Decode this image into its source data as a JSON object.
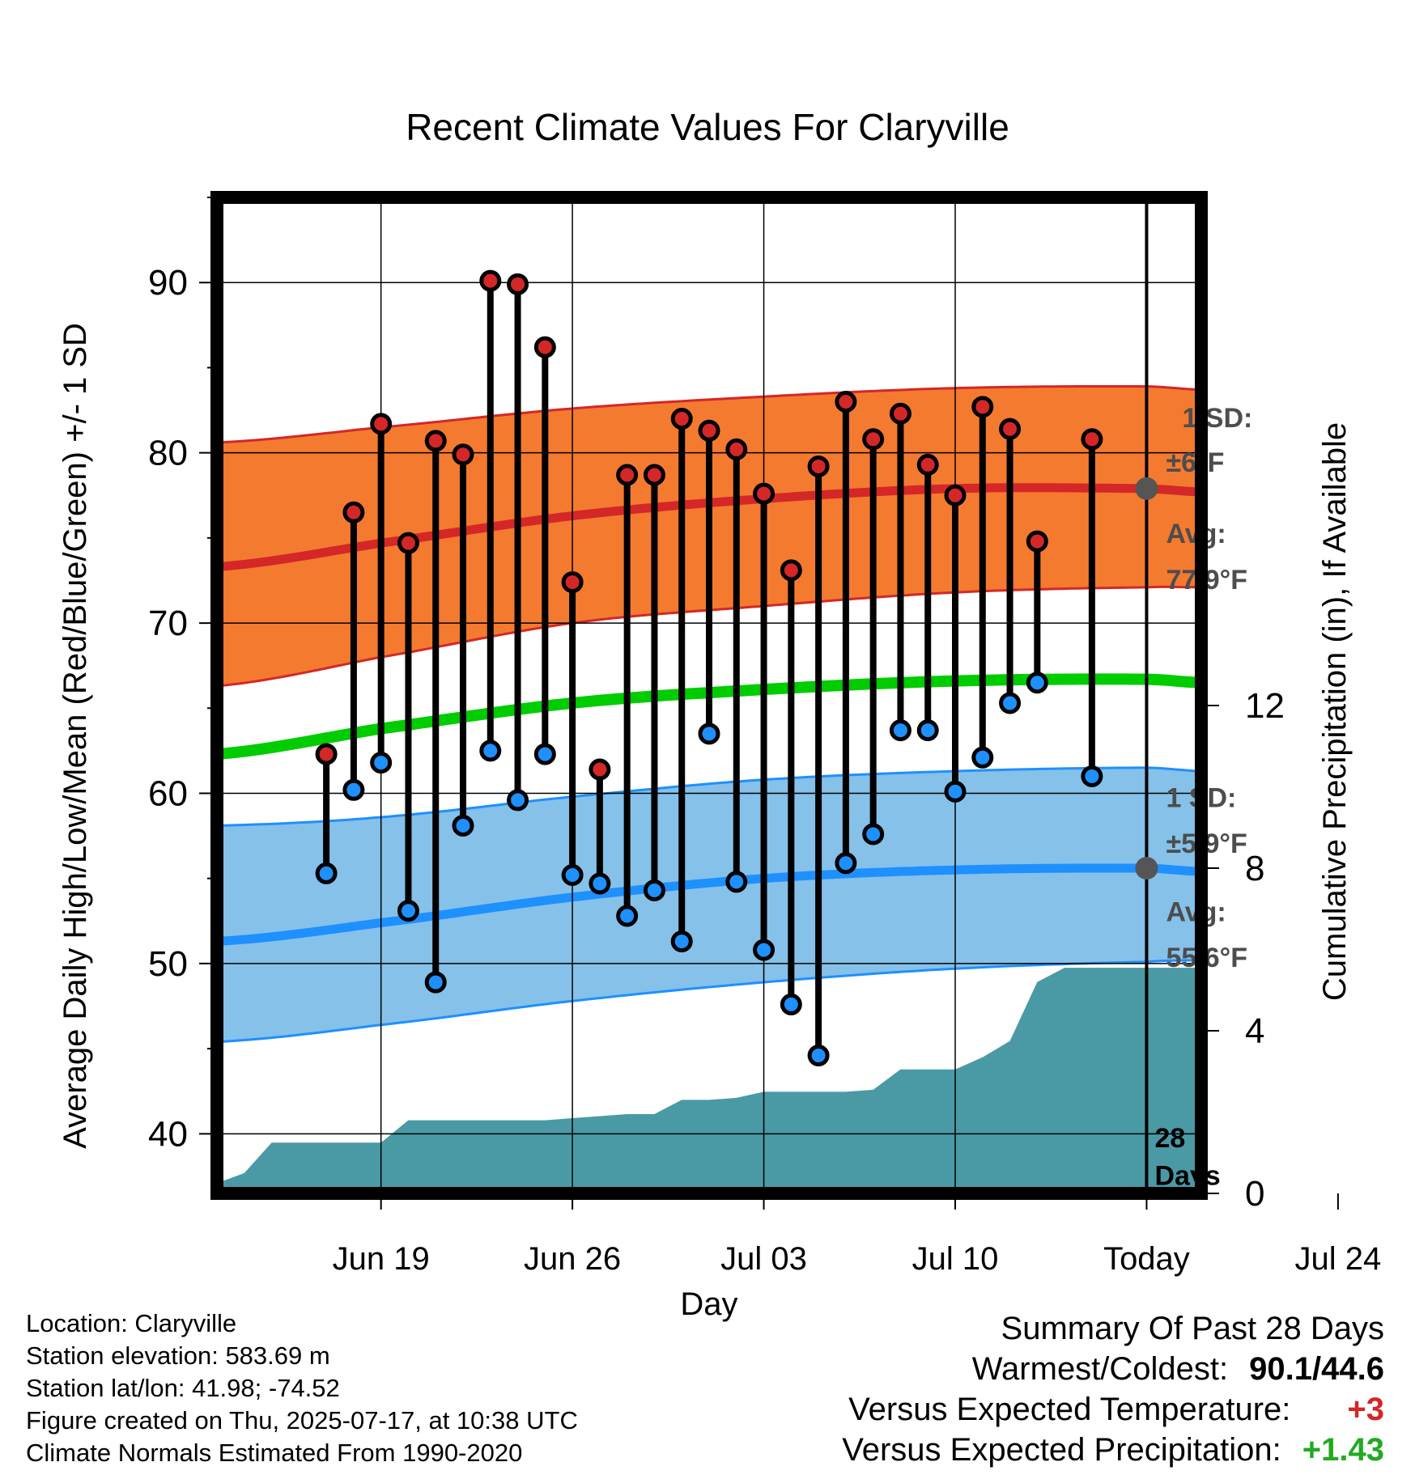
{
  "chart_data": {
    "type": "line",
    "title": "Recent Climate Values For Claryville",
    "xlabel": "Day",
    "ylabel": "Average Daily High/Low/Mean (Red/Blue/Green) +/- 1 SD",
    "y2label": "Cumulative Precipitation (in), If Available",
    "ylim": [
      36.5,
      95
    ],
    "y2lim": [
      0,
      24.5
    ],
    "yticks": [
      40,
      50,
      60,
      70,
      80,
      90
    ],
    "y2ticks": [
      0,
      4,
      8,
      12
    ],
    "xlim": [
      -6,
      30
    ],
    "xticks": [
      {
        "day": 0,
        "label": "Jun 19"
      },
      {
        "day": 7,
        "label": "Jun 26"
      },
      {
        "day": 14,
        "label": "Jul 03"
      },
      {
        "day": 21,
        "label": "Jul 10"
      },
      {
        "day": 28,
        "label": "Today"
      },
      {
        "day": 35,
        "label": "Jul 24"
      }
    ],
    "grid": true,
    "x_start_date": "Jun 19",
    "series": [
      {
        "name": "Daily High",
        "color": "#d42727",
        "x": [
          -2,
          -1,
          0,
          1,
          2,
          3,
          4,
          5,
          6,
          7,
          8,
          9,
          10,
          11,
          12,
          13,
          14,
          15,
          16,
          17,
          18,
          19,
          20,
          21,
          22,
          23,
          24,
          26
        ],
        "values": [
          62.3,
          76.5,
          81.7,
          74.7,
          80.7,
          79.9,
          90.1,
          89.9,
          86.2,
          72.4,
          61.4,
          78.7,
          78.7,
          82.0,
          81.3,
          80.2,
          77.6,
          73.1,
          79.2,
          83.0,
          80.8,
          82.3,
          79.3,
          77.5,
          82.7,
          81.4,
          74.8,
          80.8
        ]
      },
      {
        "name": "Daily Low",
        "color": "#1e90ff",
        "x": [
          -2,
          -1,
          0,
          1,
          2,
          3,
          4,
          5,
          6,
          7,
          8,
          9,
          10,
          11,
          12,
          13,
          14,
          15,
          16,
          17,
          18,
          19,
          20,
          21,
          22,
          23,
          24,
          26
        ],
        "values": [
          55.3,
          60.2,
          61.8,
          53.1,
          48.9,
          58.1,
          62.5,
          59.6,
          62.3,
          55.2,
          54.7,
          52.8,
          54.3,
          51.3,
          63.5,
          54.8,
          50.8,
          47.6,
          44.6,
          55.9,
          57.6,
          63.7,
          63.7,
          60.1,
          62.1,
          65.3,
          66.5,
          61.0
        ]
      },
      {
        "name": "Average High",
        "color": "#d42727",
        "x": [
          -6,
          0,
          7,
          14,
          21,
          28,
          30
        ],
        "values": [
          73.3,
          74.7,
          76.3,
          77.3,
          77.9,
          77.9,
          77.7
        ]
      },
      {
        "name": "Average Mean",
        "color": "#00cc00",
        "x": [
          -6,
          0,
          7,
          14,
          21,
          28,
          30
        ],
        "values": [
          62.3,
          63.8,
          65.3,
          66.1,
          66.6,
          66.7,
          66.5
        ]
      },
      {
        "name": "Average Low",
        "color": "#1e90ff",
        "x": [
          -6,
          0,
          7,
          14,
          21,
          28,
          30
        ],
        "values": [
          51.3,
          52.4,
          53.9,
          55.0,
          55.5,
          55.6,
          55.4
        ]
      },
      {
        "name": "Cumulative Precipitation",
        "color": "#4a9aa5",
        "x": [
          -6,
          -5.8,
          -5,
          -4,
          -3,
          -2,
          -1,
          0,
          1,
          2,
          3,
          4,
          5,
          6,
          7,
          8,
          9,
          10,
          11,
          12,
          13,
          14,
          15,
          16,
          17,
          18,
          19,
          20,
          21,
          22,
          23,
          24,
          25,
          26,
          27,
          28,
          29,
          30
        ],
        "values": [
          0,
          0.3,
          0.5,
          1.25,
          1.25,
          1.25,
          1.25,
          1.25,
          1.8,
          1.8,
          1.8,
          1.8,
          1.8,
          1.8,
          1.85,
          1.9,
          1.95,
          1.95,
          2.3,
          2.3,
          2.35,
          2.5,
          2.5,
          2.5,
          2.5,
          2.55,
          3.05,
          3.05,
          3.05,
          3.35,
          3.75,
          5.2,
          5.55,
          5.55,
          5.55,
          5.55,
          5.55,
          5.55
        ]
      }
    ],
    "bands": [
      {
        "name": "High +/- 1 SD",
        "x": [
          -6,
          0,
          7,
          14,
          21,
          28,
          30
        ],
        "lower": [
          66.3,
          68.0,
          70.0,
          71.0,
          71.8,
          72.1,
          72.1
        ],
        "upper": [
          80.6,
          81.5,
          82.6,
          83.3,
          83.8,
          83.9,
          83.7
        ]
      },
      {
        "name": "Low +/- 1 SD",
        "x": [
          -6,
          0,
          7,
          14,
          21,
          28,
          30
        ],
        "lower": [
          45.4,
          46.4,
          47.8,
          48.9,
          49.7,
          50.1,
          50.2
        ],
        "upper": [
          58.1,
          58.6,
          59.8,
          60.8,
          61.3,
          61.5,
          61.3
        ]
      }
    ],
    "annotations": {
      "high_sd": {
        "label": "1 SD:",
        "value": "±6°F"
      },
      "high_avg": {
        "label": "Avg:",
        "value": "77.9°F"
      },
      "low_sd": {
        "label": "1 SD:",
        "value": "±5.9°F"
      },
      "low_avg": {
        "label": "Avg:",
        "value": "55.6°F"
      },
      "days_number": "28",
      "days_label": "Days"
    }
  },
  "info": {
    "location": "Location: Claryville",
    "elevation": "Station elevation: 583.69 m",
    "latlon": "Station lat/lon: 41.98; -74.52",
    "created": "Figure created on Thu, 2025-07-17, at 10:38 UTC",
    "normals": "Climate Normals Estimated From 1990-2020"
  },
  "summary": {
    "title": "Summary Of Past 28 Days",
    "warmest_coldest_label": "Warmest/Coldest:",
    "warmest": "90.1",
    "coldest": "44.6",
    "sep": "/",
    "temp_label": "Versus Expected Temperature:",
    "temp_value": "+3",
    "temp_color": "#d42727",
    "precip_label": "Versus Expected Precipitation:",
    "precip_value": "+1.43",
    "precip_color": "#22aa22"
  }
}
